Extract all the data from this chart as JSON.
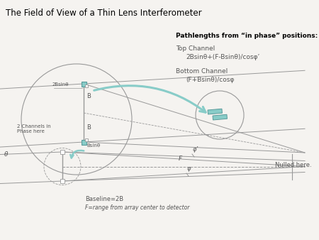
{
  "title": "The Field of View of a Thin Lens Interferometer",
  "background_color": "#f5f3f0",
  "text_color": "#555555",
  "line_color": "#999999",
  "teal_color": "#88ccc8",
  "pathlengths_header": "Pathlengths from “in phase” positions:",
  "top_channel_label": "Top Channel",
  "top_channel_formula": "2Bsinθ+(F-Bsinθ)/cosφ’",
  "bottom_channel_label": "Bottom Channel",
  "bottom_channel_formula": "(F+Bsinθ)/cosφ",
  "label_2Bsintheta": "2Bsinθ",
  "label_B_top": "B",
  "label_B_bot": "B",
  "label_Bsintheta": "Bsinθ",
  "label_2channels": "2 Channels in\nPhase here",
  "label_theta": "θ",
  "label_phi_prime": "φ’",
  "label_F": "F",
  "label_phi": "φ",
  "label_nulled": "Nulled here.",
  "label_baseline": "Baseline=2B",
  "label_Frange": "F=range from array center to detector",
  "figsize": [
    4.5,
    3.38
  ],
  "dpi": 100
}
